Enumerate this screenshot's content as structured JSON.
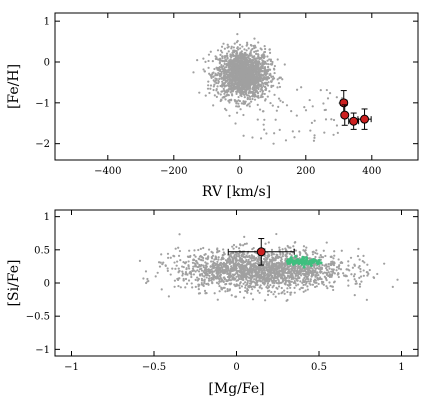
{
  "chart_data": [
    {
      "type": "scatter",
      "xlabel": "RV [km/s]",
      "ylabel": "[Fe/H]",
      "xlim": [
        -560,
        540
      ],
      "ylim": [
        -2.4,
        1.2
      ],
      "xticks": [
        -400,
        -200,
        0,
        200,
        400
      ],
      "xtick_labels": [
        "−400",
        "−200",
        "0",
        "200",
        "400"
      ],
      "yticks": [
        -2,
        -1,
        0,
        1
      ],
      "ytick_labels": [
        "−2",
        "−1",
        "0",
        "1"
      ],
      "background_cloud": {
        "description_color": "#a0a0a0",
        "center_x": 10,
        "center_y": -0.3,
        "spread_x": 40,
        "spread_y": 0.3,
        "n_points": 1800,
        "extra_x_max": 320
      },
      "series": [
        {
          "marker": "circle",
          "color": "#cc2020",
          "points": [
            {
              "x": 315,
              "y": -1.0,
              "yerr": 0.3,
              "xerr": 10
            },
            {
              "x": 318,
              "y": -1.3,
              "yerr": 0.25,
              "xerr": 8
            },
            {
              "x": 345,
              "y": -1.45,
              "yerr": 0.2,
              "xerr": 15
            },
            {
              "x": 378,
              "y": -1.4,
              "yerr": 0.25,
              "xerr": 20
            }
          ]
        }
      ],
      "grid": false
    },
    {
      "type": "scatter",
      "xlabel": "[Mg/Fe]",
      "ylabel": "[Si/Fe]",
      "xlim": [
        -1.1,
        1.1
      ],
      "ylim": [
        -1.1,
        1.1
      ],
      "xticks": [
        -1,
        -0.5,
        0,
        0.5,
        1
      ],
      "xtick_labels": [
        "−1",
        "−0.5",
        "0",
        "0.5",
        "1"
      ],
      "yticks": [
        -1,
        -0.5,
        0,
        0.5,
        1
      ],
      "ytick_labels": [
        "−1",
        "−0.5",
        "0",
        "0.5",
        "1"
      ],
      "background_cloud": {
        "color": "#a0a0a0",
        "center_x": 0.15,
        "center_y": 0.2,
        "spread_x": 0.25,
        "spread_y": 0.15,
        "n_points": 2000
      },
      "green_cluster": {
        "color": "#3fbf7f",
        "center_x": 0.4,
        "center_y": 0.33,
        "spread_x": 0.05,
        "spread_y": 0.03,
        "n_points": 80
      },
      "series": [
        {
          "marker": "circle",
          "color": "#cc2020",
          "points": [
            {
              "x": 0.15,
              "y": 0.47,
              "xerr": 0.2,
              "yerr": 0.2
            }
          ]
        }
      ],
      "grid": false
    }
  ]
}
